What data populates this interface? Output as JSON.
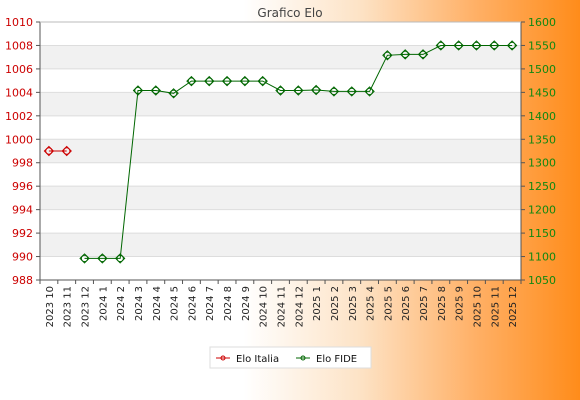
{
  "chart_data": {
    "type": "line",
    "title": "Grafico Elo",
    "categories": [
      "2023 10",
      "2023 11",
      "2023 12",
      "2024 1",
      "2024 2",
      "2024 3",
      "2024 4",
      "2024 5",
      "2024 6",
      "2024 7",
      "2024 8",
      "2024 9",
      "2024 10",
      "2024 11",
      "2024 12",
      "2025 1",
      "2025 2",
      "2025 3",
      "2025 4",
      "2025 5",
      "2025 6",
      "2025 7",
      "2025 8",
      "2025 9",
      "2025 10",
      "2025 11",
      "2025 12"
    ],
    "y_left": {
      "ticks": [
        988,
        990,
        992,
        994,
        996,
        998,
        1000,
        1002,
        1004,
        1006,
        1008,
        1010
      ],
      "range": [
        988,
        1010
      ]
    },
    "y_right": {
      "ticks": [
        1050,
        1100,
        1150,
        1200,
        1250,
        1300,
        1350,
        1400,
        1450,
        1500,
        1550,
        1600
      ],
      "range": [
        1050,
        1600
      ]
    },
    "grid": true,
    "legend_position": "bottom",
    "series": [
      {
        "name": "Elo Italia",
        "axis": "left",
        "color": "#cc0000",
        "values": [
          999,
          999,
          null,
          null,
          null,
          null,
          null,
          null,
          null,
          null,
          null,
          null,
          null,
          null,
          null,
          null,
          null,
          null,
          null,
          null,
          null,
          null,
          null,
          null,
          null,
          null,
          null
        ]
      },
      {
        "name": "Elo FIDE",
        "axis": "right",
        "color": "#006600",
        "values": [
          null,
          null,
          1096,
          1096,
          1096,
          1454,
          1454,
          1448,
          1474,
          1474,
          1474,
          1474,
          1474,
          1454,
          1454,
          1455,
          1452,
          1452,
          1452,
          1529,
          1531,
          1531,
          1550,
          1550,
          1550,
          1550,
          1550
        ]
      }
    ]
  }
}
